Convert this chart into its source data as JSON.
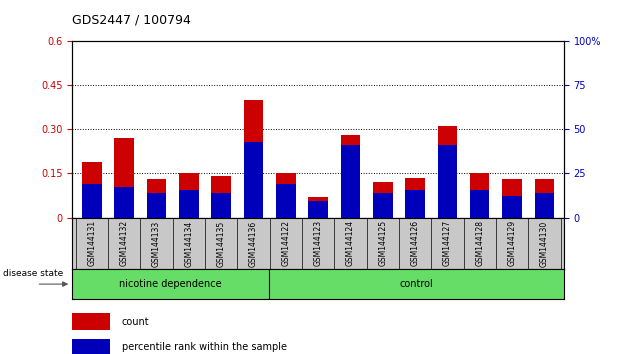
{
  "title": "GDS2447 / 100794",
  "samples": [
    "GSM144131",
    "GSM144132",
    "GSM144133",
    "GSM144134",
    "GSM144135",
    "GSM144136",
    "GSM144122",
    "GSM144123",
    "GSM144124",
    "GSM144125",
    "GSM144126",
    "GSM144127",
    "GSM144128",
    "GSM144129",
    "GSM144130"
  ],
  "count_values": [
    0.19,
    0.27,
    0.13,
    0.15,
    0.14,
    0.4,
    0.15,
    0.07,
    0.28,
    0.12,
    0.135,
    0.31,
    0.15,
    0.13,
    0.13
  ],
  "pct_values_scaled": [
    0.115,
    0.105,
    0.085,
    0.095,
    0.085,
    0.255,
    0.115,
    0.055,
    0.245,
    0.085,
    0.095,
    0.245,
    0.095,
    0.075,
    0.085
  ],
  "nd_count": 6,
  "ctrl_count": 9,
  "group1_label": "nicotine dependence",
  "group2_label": "control",
  "group_color": "#66DD66",
  "bar_gray": "#C8C8C8",
  "count_color": "#CC0000",
  "percentile_color": "#0000BB",
  "ylim_left": [
    0,
    0.6
  ],
  "ylim_right": [
    0,
    100
  ],
  "yticks_left": [
    0,
    0.15,
    0.3,
    0.45,
    0.6
  ],
  "ytick_labels_left": [
    "0",
    "0.15",
    "0.30",
    "0.45",
    "0.6"
  ],
  "yticks_right": [
    0,
    25,
    50,
    75,
    100
  ],
  "ytick_labels_right": [
    "0",
    "25",
    "50",
    "75",
    "100%"
  ],
  "hlines": [
    0.15,
    0.3,
    0.45
  ],
  "legend_count": "count",
  "legend_percentile": "percentile rank within the sample",
  "disease_state_label": "disease state"
}
